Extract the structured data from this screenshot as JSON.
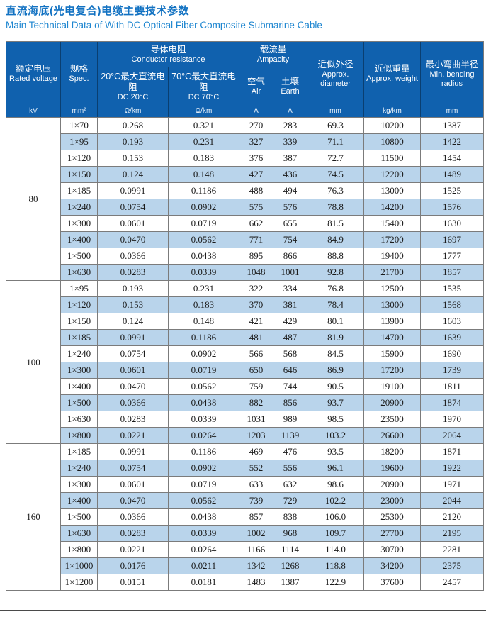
{
  "title": {
    "zh": "直流海底(光电复合)电缆主要技术参数",
    "en": "Main Technical Data of With DC Optical Fiber Composite Submarine Cable"
  },
  "colors": {
    "title_blue": "#1272c2",
    "subtitle_blue": "#1e86d0",
    "header_bg": "#1061ae",
    "alt_row": "#b9d4eb"
  },
  "table": {
    "header": {
      "rated_voltage": {
        "zh": "额定电压",
        "en": "Rated voltage",
        "unit": "kV"
      },
      "spec": {
        "zh": "规格",
        "en": "Spec.",
        "unit": "mm²"
      },
      "conductor_resistance": {
        "zh": "导体电阻",
        "en": "Conductor resistance"
      },
      "dc20": {
        "zh": "20°C最大直流电阻",
        "en": "DC 20°C",
        "unit": "Ω/km"
      },
      "dc70": {
        "zh": "70°C最大直流电阻",
        "en": "DC 70°C",
        "unit": "Ω/km"
      },
      "ampacity": {
        "zh": "载流量",
        "en": "Ampacity"
      },
      "air": {
        "zh": "空气",
        "en": "Air",
        "unit": "A"
      },
      "earth": {
        "zh": "土壤",
        "en": "Earth",
        "unit": "A"
      },
      "diameter": {
        "zh": "近似外径",
        "en": "Approx. diameter",
        "unit": "mm"
      },
      "weight": {
        "zh": "近似重量",
        "en": "Approx. weight",
        "unit": "kg/km"
      },
      "radius": {
        "zh": "最小弯曲半径",
        "en": "Min. bending radius",
        "unit": "mm"
      }
    },
    "groups": [
      {
        "voltage": "80",
        "rows": [
          [
            "1×70",
            "0.268",
            "0.321",
            "270",
            "283",
            "69.3",
            "10200",
            "1387"
          ],
          [
            "1×95",
            "0.193",
            "0.231",
            "327",
            "339",
            "71.1",
            "10800",
            "1422"
          ],
          [
            "1×120",
            "0.153",
            "0.183",
            "376",
            "387",
            "72.7",
            "11500",
            "1454"
          ],
          [
            "1×150",
            "0.124",
            "0.148",
            "427",
            "436",
            "74.5",
            "12200",
            "1489"
          ],
          [
            "1×185",
            "0.0991",
            "0.1186",
            "488",
            "494",
            "76.3",
            "13000",
            "1525"
          ],
          [
            "1×240",
            "0.0754",
            "0.0902",
            "575",
            "576",
            "78.8",
            "14200",
            "1576"
          ],
          [
            "1×300",
            "0.0601",
            "0.0719",
            "662",
            "655",
            "81.5",
            "15400",
            "1630"
          ],
          [
            "1×400",
            "0.0470",
            "0.0562",
            "771",
            "754",
            "84.9",
            "17200",
            "1697"
          ],
          [
            "1×500",
            "0.0366",
            "0.0438",
            "895",
            "866",
            "88.8",
            "19400",
            "1777"
          ],
          [
            "1×630",
            "0.0283",
            "0.0339",
            "1048",
            "1001",
            "92.8",
            "21700",
            "1857"
          ]
        ]
      },
      {
        "voltage": "100",
        "rows": [
          [
            "1×95",
            "0.193",
            "0.231",
            "322",
            "334",
            "76.8",
            "12500",
            "1535"
          ],
          [
            "1×120",
            "0.153",
            "0.183",
            "370",
            "381",
            "78.4",
            "13000",
            "1568"
          ],
          [
            "1×150",
            "0.124",
            "0.148",
            "421",
            "429",
            "80.1",
            "13900",
            "1603"
          ],
          [
            "1×185",
            "0.0991",
            "0.1186",
            "481",
            "487",
            "81.9",
            "14700",
            "1639"
          ],
          [
            "1×240",
            "0.0754",
            "0.0902",
            "566",
            "568",
            "84.5",
            "15900",
            "1690"
          ],
          [
            "1×300",
            "0.0601",
            "0.0719",
            "650",
            "646",
            "86.9",
            "17200",
            "1739"
          ],
          [
            "1×400",
            "0.0470",
            "0.0562",
            "759",
            "744",
            "90.5",
            "19100",
            "1811"
          ],
          [
            "1×500",
            "0.0366",
            "0.0438",
            "882",
            "856",
            "93.7",
            "20900",
            "1874"
          ],
          [
            "1×630",
            "0.0283",
            "0.0339",
            "1031",
            "989",
            "98.5",
            "23500",
            "1970"
          ],
          [
            "1×800",
            "0.0221",
            "0.0264",
            "1203",
            "1139",
            "103.2",
            "26600",
            "2064"
          ]
        ]
      },
      {
        "voltage": "160",
        "rows": [
          [
            "1×185",
            "0.0991",
            "0.1186",
            "469",
            "476",
            "93.5",
            "18200",
            "1871"
          ],
          [
            "1×240",
            "0.0754",
            "0.0902",
            "552",
            "556",
            "96.1",
            "19600",
            "1922"
          ],
          [
            "1×300",
            "0.0601",
            "0.0719",
            "633",
            "632",
            "98.6",
            "20900",
            "1971"
          ],
          [
            "1×400",
            "0.0470",
            "0.0562",
            "739",
            "729",
            "102.2",
            "23000",
            "2044"
          ],
          [
            "1×500",
            "0.0366",
            "0.0438",
            "857",
            "838",
            "106.0",
            "25300",
            "2120"
          ],
          [
            "1×630",
            "0.0283",
            "0.0339",
            "1002",
            "968",
            "109.7",
            "27700",
            "2195"
          ],
          [
            "1×800",
            "0.0221",
            "0.0264",
            "1166",
            "1114",
            "114.0",
            "30700",
            "2281"
          ],
          [
            "1×1000",
            "0.0176",
            "0.0211",
            "1342",
            "1268",
            "118.8",
            "34200",
            "2375"
          ],
          [
            "1×1200",
            "0.0151",
            "0.0181",
            "1483",
            "1387",
            "122.9",
            "37600",
            "2457"
          ]
        ]
      }
    ]
  }
}
